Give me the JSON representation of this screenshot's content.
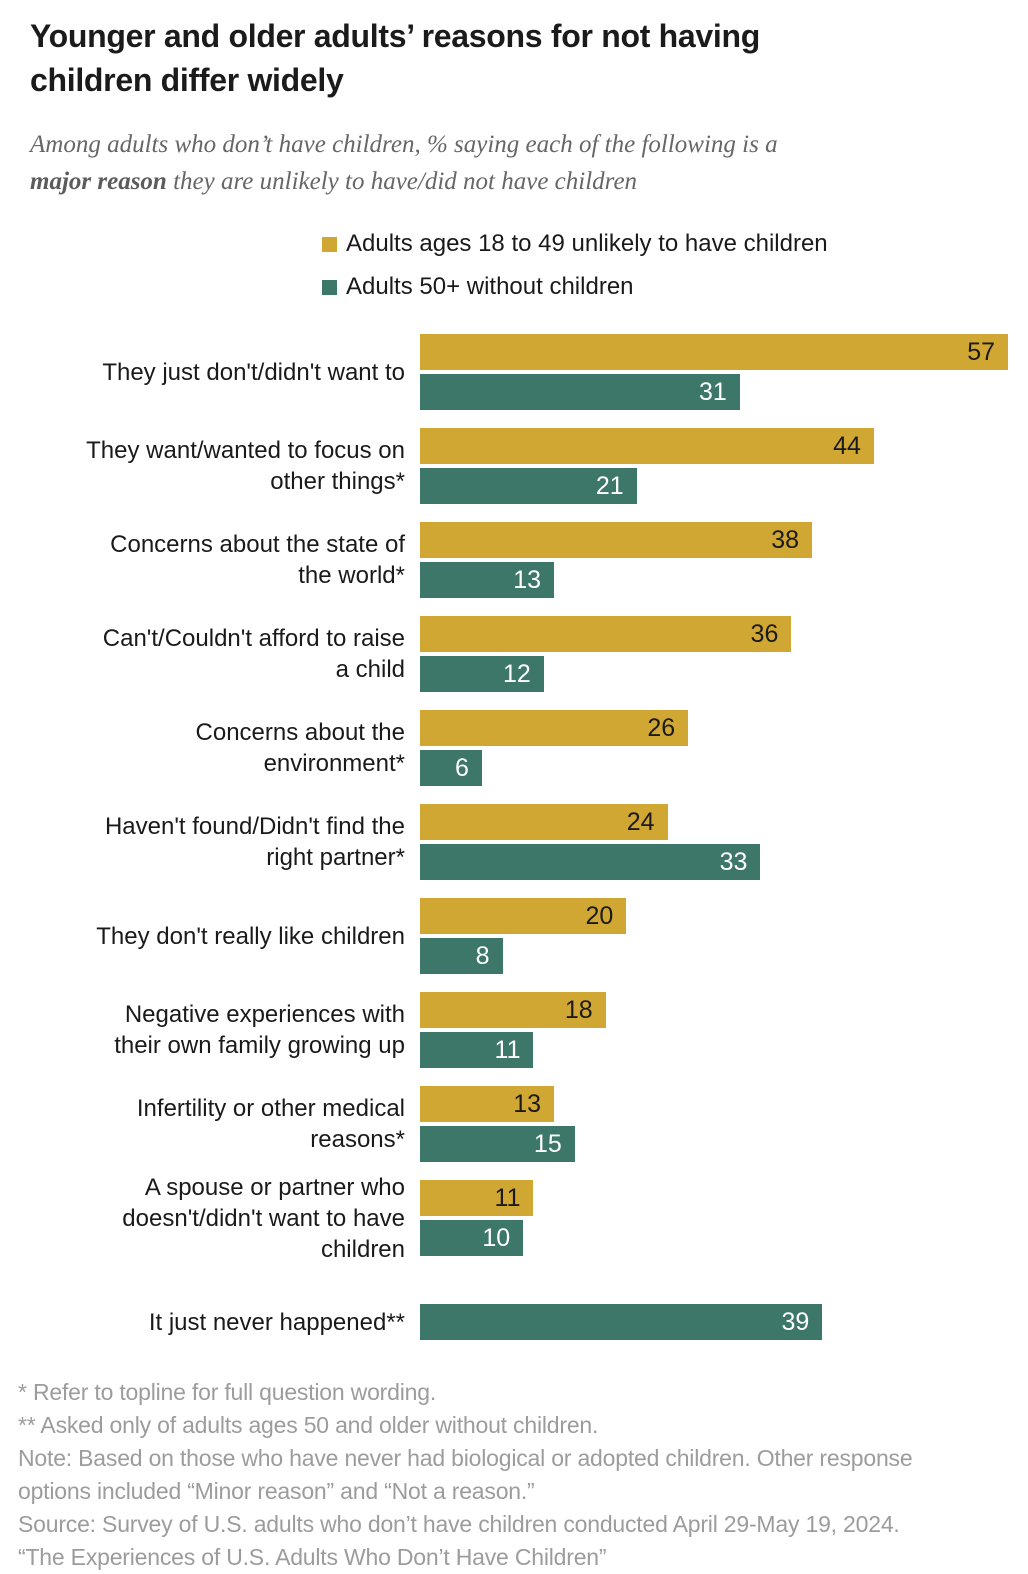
{
  "header": {
    "title": "Younger and older adults’ reasons for not having\nchildren differ widely",
    "subtitle_prefix": "Among adults who don’t have children, % saying each of the following is a\n",
    "subtitle_bold": "major reason",
    "subtitle_suffix": " they are unlikely to have/did not have children"
  },
  "colors": {
    "gold": "#D1A733",
    "teal": "#3C776A",
    "value_on_gold": "#1a1a1a",
    "value_on_teal": "#ffffff",
    "title_text": "#1b1b1b",
    "subtitle_text": "#666666",
    "footnote_text": "#9c9c9c"
  },
  "chart_data": {
    "type": "bar",
    "orientation": "horizontal",
    "unit": "percent",
    "xlim": [
      0,
      57
    ],
    "grid": false,
    "legend_position": "top-left-of-plot",
    "categories": [
      "They just don't/didn't want to",
      "They want/wanted to focus on\nother things*",
      "Concerns about the state of\nthe world*",
      "Can't/Couldn't afford to raise\na child",
      "Concerns about the\nenvironment*",
      "Haven't found/Didn't find the\nright partner*",
      "They don't really like children",
      "Negative experiences with\ntheir own family growing up",
      "Infertility or other medical\nreasons*",
      "A spouse or partner who\ndoesn't/didn't want to have\nchildren",
      "It just never happened**"
    ],
    "series": [
      {
        "name": "Adults ages 18 to 49 unlikely to have children",
        "color": "#D1A733",
        "value_label_color": "#1a1a1a",
        "values": [
          57,
          44,
          38,
          36,
          26,
          24,
          20,
          18,
          13,
          11,
          null
        ]
      },
      {
        "name": "Adults 50+ without children",
        "color": "#3C776A",
        "value_label_color": "#ffffff",
        "values": [
          31,
          21,
          13,
          12,
          6,
          33,
          8,
          11,
          15,
          10,
          39
        ]
      }
    ]
  },
  "footnotes": [
    "* Refer to topline for full question wording.",
    "** Asked only of adults ages 50 and older without children.",
    "Note: Based on those who have never had biological or adopted children. Other response\noptions included “Minor reason” and “Not a reason.”",
    "Source: Survey of U.S. adults who don’t have children conducted April 29-May 19, 2024.\n“The Experiences of U.S. Adults Who Don’t Have Children”"
  ]
}
